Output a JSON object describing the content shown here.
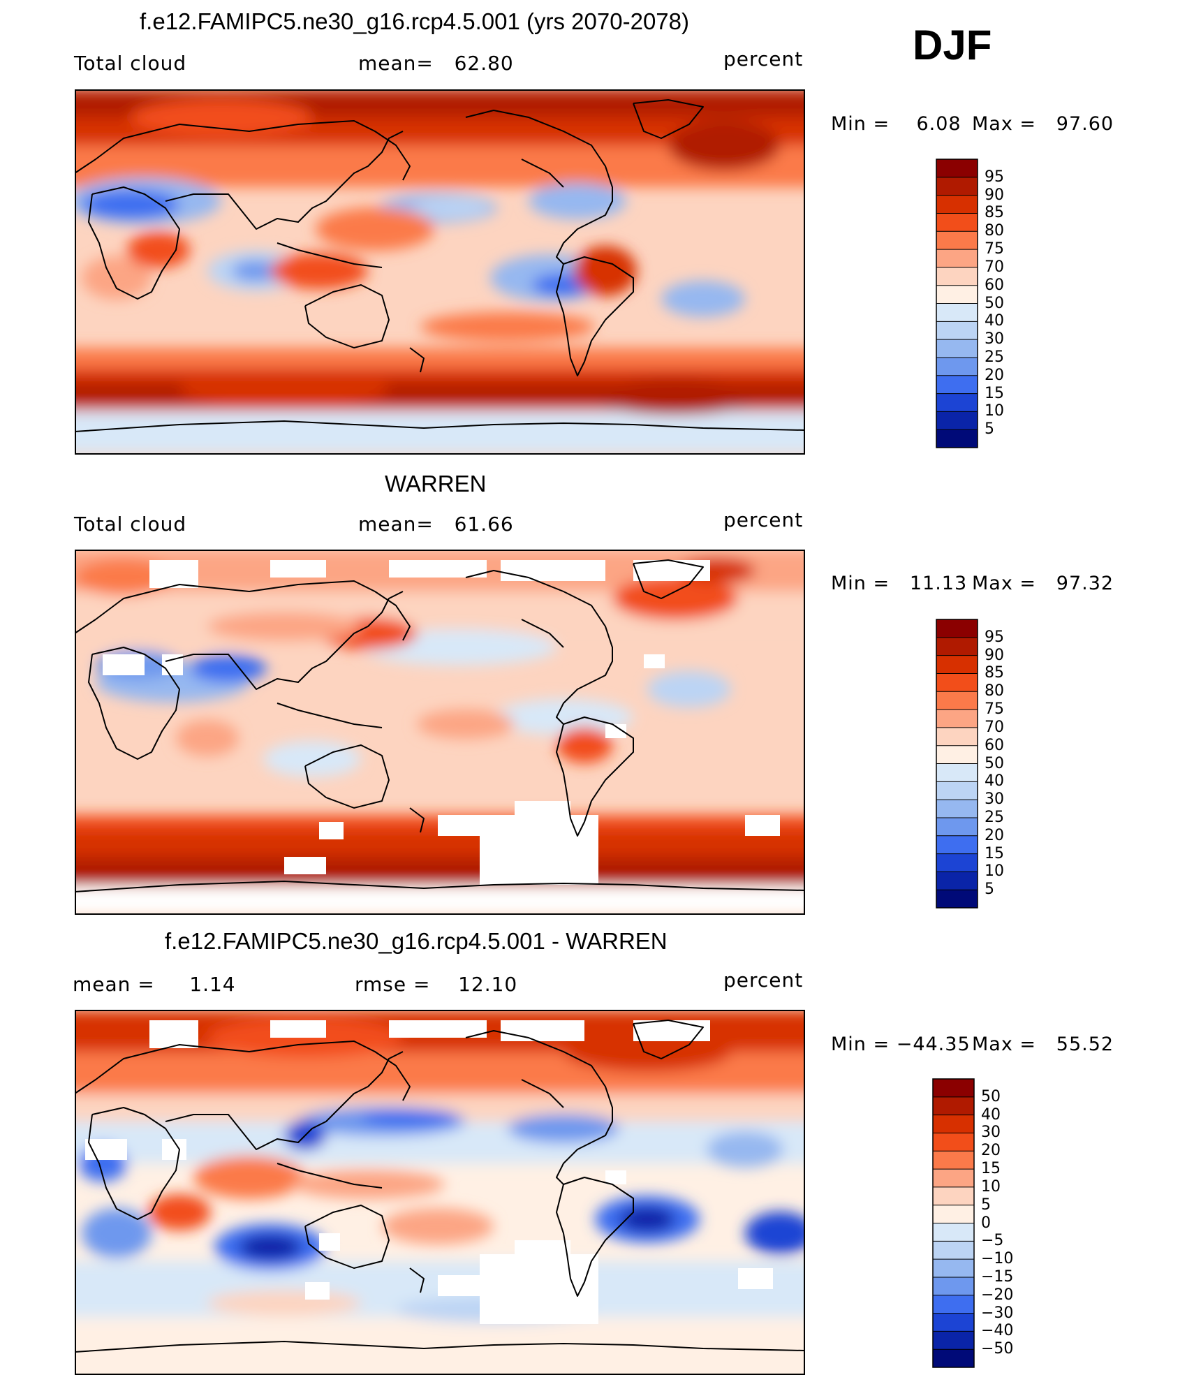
{
  "header": {
    "season": "DJF"
  },
  "chart_data": [
    {
      "type": "heatmap",
      "title": "f.e12.FAMIPC5.ne30_g16.rcp4.5.001 (yrs 2070-2078)",
      "left_label": "Total cloud",
      "center_label": "mean=   62.80",
      "units": "percent",
      "min_label": "Min =    6.08",
      "max_label": "Max =   97.60",
      "colorbar_levels": [
        "95",
        "90",
        "85",
        "80",
        "75",
        "70",
        "60",
        "50",
        "40",
        "30",
        "25",
        "20",
        "15",
        "10",
        "5"
      ],
      "colorbar_colors": [
        "#8b0000",
        "#b01a00",
        "#d73000",
        "#f24e1a",
        "#fb7a4a",
        "#fca584",
        "#fdd4c0",
        "#fff0e4",
        "#d8e8f8",
        "#bcd4f4",
        "#96b8f0",
        "#6e98ee",
        "#3e6ef0",
        "#1c44d4",
        "#0a24a8",
        "#000a78"
      ],
      "mean": 62.8,
      "min": 6.08,
      "max": 97.6
    },
    {
      "type": "heatmap",
      "title": "WARREN",
      "left_label": "Total cloud",
      "center_label": "mean=   61.66",
      "units": "percent",
      "min_label": "Min =   11.13",
      "max_label": "Max =   97.32",
      "colorbar_levels": [
        "95",
        "90",
        "85",
        "80",
        "75",
        "70",
        "60",
        "50",
        "40",
        "30",
        "25",
        "20",
        "15",
        "10",
        "5"
      ],
      "colorbar_colors": [
        "#8b0000",
        "#b01a00",
        "#d73000",
        "#f24e1a",
        "#fb7a4a",
        "#fca584",
        "#fdd4c0",
        "#fff0e4",
        "#d8e8f8",
        "#bcd4f4",
        "#96b8f0",
        "#6e98ee",
        "#3e6ef0",
        "#1c44d4",
        "#0a24a8",
        "#000a78"
      ],
      "mean": 61.66,
      "min": 11.13,
      "max": 97.32
    },
    {
      "type": "heatmap",
      "title": "f.e12.FAMIPC5.ne30_g16.rcp4.5.001 - WARREN",
      "left_label": "mean =     1.14",
      "center_label": "rmse =    12.10",
      "units": "percent",
      "min_label": "Min = −44.35",
      "max_label": "Max =   55.52",
      "colorbar_levels": [
        "50",
        "40",
        "30",
        "20",
        "15",
        "10",
        "5",
        "0",
        "−5",
        "−10",
        "−15",
        "−20",
        "−30",
        "−40",
        "−50"
      ],
      "colorbar_colors": [
        "#8b0000",
        "#b01a00",
        "#d73000",
        "#f24e1a",
        "#fb7a4a",
        "#fca584",
        "#fdd4c0",
        "#fff0e4",
        "#d8e8f8",
        "#bcd4f4",
        "#96b8f0",
        "#6e98ee",
        "#3e6ef0",
        "#1c44d4",
        "#0a24a8",
        "#000a78"
      ],
      "mean": 1.14,
      "rmse": 12.1,
      "min": -44.35,
      "max": 55.52
    }
  ]
}
